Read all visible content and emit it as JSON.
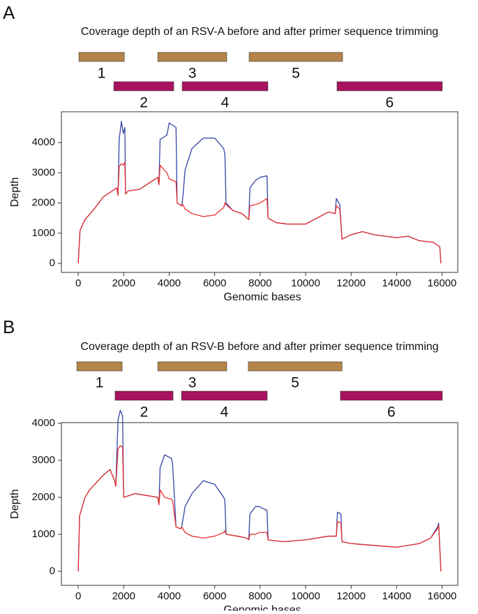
{
  "chart_data": [
    {
      "type": "line",
      "panel_label": "A",
      "title": "Coverage depth of an RSV-A before and after primer sequence trimming",
      "x_label": "Genomic bases",
      "y_label": "Depth",
      "amplicons": [
        {
          "label": "1",
          "start": 30,
          "end": 2025,
          "color": "#b5844a"
        },
        {
          "label": "2",
          "start": 1565,
          "end": 4200,
          "color": "#a8125e"
        },
        {
          "label": "3",
          "start": 3500,
          "end": 6530,
          "color": "#b5844a"
        },
        {
          "label": "4",
          "start": 4570,
          "end": 8340,
          "color": "#a8125e"
        },
        {
          "label": "5",
          "start": 7515,
          "end": 11625,
          "color": "#b5844a"
        },
        {
          "label": "6",
          "start": 11380,
          "end": 16010,
          "color": "#a8125e"
        }
      ],
      "x": [
        0,
        80,
        300,
        700,
        1100,
        1500,
        1700,
        1750,
        1800,
        1900,
        1980,
        2050,
        2080,
        2200,
        2700,
        3200,
        3500,
        3550,
        3600,
        3900,
        4000,
        4300,
        4350,
        4550,
        4600,
        4700,
        5000,
        5500,
        6000,
        6400,
        6450,
        6500,
        6800,
        7200,
        7500,
        7550,
        7800,
        8000,
        8300,
        8350,
        8700,
        9200,
        10000,
        10500,
        11000,
        11300,
        11350,
        11500,
        11600,
        12000,
        12500,
        13000,
        14000,
        14500,
        15000,
        15600,
        15900,
        15950
      ],
      "series": [
        {
          "color": "#3545a5",
          "values": [
            0,
            1100,
            1450,
            1800,
            2200,
            2400,
            2500,
            2250,
            4100,
            4700,
            4300,
            4500,
            2300,
            2400,
            2450,
            2700,
            2850,
            2600,
            4100,
            4250,
            4650,
            4500,
            2000,
            1900,
            2200,
            3100,
            3800,
            4150,
            4150,
            3800,
            3600,
            2000,
            1750,
            1650,
            1450,
            2500,
            2750,
            2850,
            2900,
            1500,
            1350,
            1300,
            1300,
            1500,
            1700,
            1650,
            2150,
            1950,
            800,
            950,
            1050,
            950,
            850,
            900,
            750,
            700,
            550,
            0
          ]
        },
        {
          "color": "#e8302e",
          "values": [
            0,
            1100,
            1450,
            1800,
            2200,
            2400,
            2500,
            2250,
            3200,
            3300,
            3250,
            3350,
            2300,
            2400,
            2450,
            2700,
            2850,
            2600,
            3250,
            3000,
            2800,
            2700,
            2000,
            1900,
            1950,
            1800,
            1650,
            1550,
            1600,
            1850,
            2000,
            1950,
            1750,
            1650,
            1450,
            1900,
            1950,
            2000,
            2150,
            1500,
            1350,
            1300,
            1300,
            1500,
            1700,
            1650,
            1900,
            1800,
            800,
            950,
            1050,
            950,
            850,
            900,
            750,
            700,
            550,
            0
          ]
        }
      ],
      "xlim": [
        -740,
        16690
      ],
      "ylim": [
        -300,
        5020
      ],
      "xticks": [
        0,
        2000,
        4000,
        6000,
        8000,
        10000,
        12000,
        14000,
        16000
      ],
      "yticks": [
        0,
        1000,
        2000,
        3000,
        4000
      ]
    },
    {
      "type": "line",
      "panel_label": "B",
      "title": "Coverage depth of an RSV-B before and after primer sequence trimming",
      "x_label": "Genomic bases",
      "y_label": "Depth",
      "amplicons": [
        {
          "label": "1",
          "start": -60,
          "end": 1930,
          "color": "#b5844a"
        },
        {
          "label": "2",
          "start": 1620,
          "end": 4170,
          "color": "#a8125e"
        },
        {
          "label": "3",
          "start": 3500,
          "end": 6530,
          "color": "#b5844a"
        },
        {
          "label": "4",
          "start": 4540,
          "end": 8310,
          "color": "#a8125e"
        },
        {
          "label": "5",
          "start": 7480,
          "end": 11600,
          "color": "#b5844a"
        },
        {
          "label": "6",
          "start": 11530,
          "end": 16010,
          "color": "#a8125e"
        }
      ],
      "x": [
        0,
        60,
        300,
        500,
        800,
        1100,
        1400,
        1600,
        1650,
        1750,
        1850,
        1950,
        2000,
        2500,
        3000,
        3500,
        3550,
        3600,
        3800,
        4100,
        4150,
        4300,
        4500,
        4550,
        4700,
        5000,
        5500,
        6000,
        6400,
        6450,
        6500,
        7000,
        7400,
        7500,
        7550,
        7800,
        7950,
        8300,
        8350,
        9000,
        10000,
        11000,
        11350,
        11400,
        11550,
        11600,
        12000,
        13000,
        14000,
        15000,
        15500,
        15800,
        15850,
        15950
      ],
      "series": [
        {
          "color": "#3545a5",
          "values": [
            0,
            1500,
            2000,
            2200,
            2400,
            2600,
            2750,
            2450,
            2300,
            4100,
            4350,
            4200,
            2000,
            2100,
            2050,
            2000,
            1800,
            2800,
            3150,
            3050,
            2900,
            1200,
            1150,
            1200,
            1750,
            2100,
            2450,
            2350,
            2000,
            1900,
            1000,
            950,
            900,
            850,
            1550,
            1750,
            1750,
            1650,
            850,
            800,
            850,
            950,
            950,
            1600,
            1550,
            800,
            750,
            700,
            650,
            750,
            900,
            1200,
            1300,
            0
          ]
        },
        {
          "color": "#e8302e",
          "values": [
            0,
            1500,
            2000,
            2200,
            2400,
            2600,
            2750,
            2450,
            2300,
            3300,
            3400,
            3350,
            2000,
            2100,
            2050,
            2000,
            1800,
            2200,
            2000,
            1950,
            1900,
            1200,
            1150,
            1200,
            1050,
            950,
            900,
            950,
            1050,
            1100,
            1000,
            950,
            900,
            850,
            1000,
            1000,
            1050,
            1050,
            850,
            800,
            850,
            950,
            950,
            1350,
            1300,
            800,
            750,
            700,
            650,
            750,
            900,
            1150,
            1250,
            0
          ]
        }
      ],
      "xlim": [
        -740,
        16690
      ],
      "ylim": [
        -380,
        4020
      ],
      "xticks": [
        0,
        2000,
        4000,
        6000,
        8000,
        10000,
        12000,
        14000,
        16000
      ],
      "yticks": [
        0,
        1000,
        2000,
        3000,
        4000
      ]
    }
  ]
}
